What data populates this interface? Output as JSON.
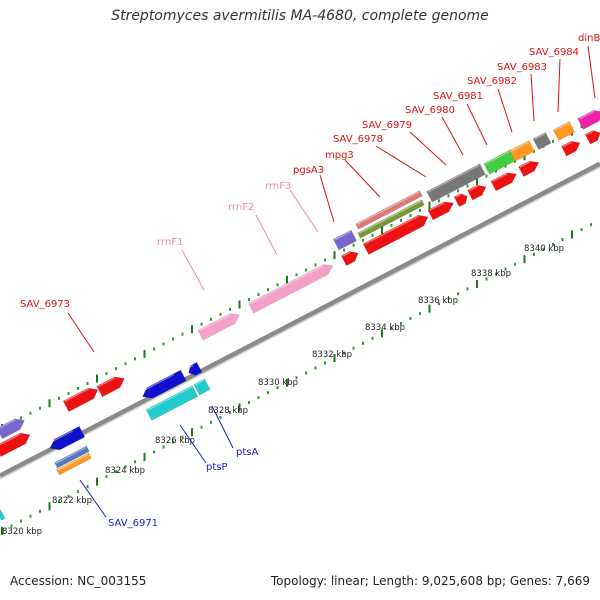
{
  "header": {
    "title": "Streptomyces avermitilis MA-4680, complete genome"
  },
  "footer": {
    "accession": "Accession: NC_003155",
    "summary": "Topology: linear; Length: 9,025,608 bp; Genes: 7,669"
  },
  "colors": {
    "top_labels": "#dd1111",
    "rrna_labels": "#ee88bb",
    "bottom_labels": "#1122cc",
    "track": "#8a8a8a"
  },
  "scale_labels": [
    "8320 kbp",
    "8322 kbp",
    "8324 kbp",
    "8326 kbp",
    "8328 kbp",
    "8330 kbp",
    "8332 kbp",
    "8334 kbp",
    "8336 kbp",
    "8338 kbp",
    "8340 kbp"
  ],
  "gene_labels_top": [
    {
      "text": "SAV_6973",
      "kind": "gene"
    },
    {
      "text": "rrnF1",
      "kind": "rrna"
    },
    {
      "text": "rrnF2",
      "kind": "rrna"
    },
    {
      "text": "rrnF3",
      "kind": "rrna"
    },
    {
      "text": "pgsA3",
      "kind": "gene"
    },
    {
      "text": "mpg3",
      "kind": "gene"
    },
    {
      "text": "SAV_6978",
      "kind": "gene"
    },
    {
      "text": "SAV_6979",
      "kind": "gene"
    },
    {
      "text": "SAV_6980",
      "kind": "gene"
    },
    {
      "text": "SAV_6981",
      "kind": "gene"
    },
    {
      "text": "SAV_6982",
      "kind": "gene"
    },
    {
      "text": "SAV_6983",
      "kind": "gene"
    },
    {
      "text": "SAV_6984",
      "kind": "gene"
    },
    {
      "text": "dinB",
      "kind": "gene"
    }
  ],
  "gene_labels_bottom": [
    {
      "text": "ptsA"
    },
    {
      "text": "ptsP"
    },
    {
      "text": "SAV_6971"
    }
  ]
}
